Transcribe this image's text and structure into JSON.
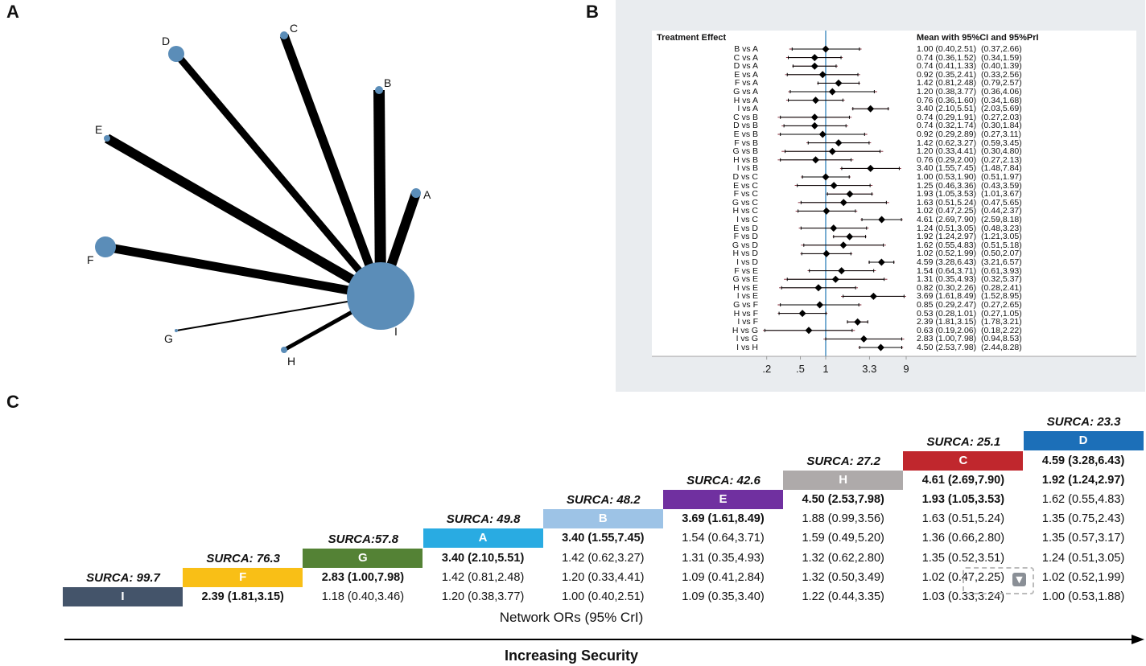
{
  "panels": {
    "a": "A",
    "b": "B",
    "c": "C"
  },
  "chart_data": [
    {
      "type": "network",
      "nodes": [
        {
          "id": "A",
          "label": "A"
        },
        {
          "id": "B",
          "label": "B"
        },
        {
          "id": "C",
          "label": "C"
        },
        {
          "id": "D",
          "label": "D"
        },
        {
          "id": "E",
          "label": "E"
        },
        {
          "id": "F",
          "label": "F"
        },
        {
          "id": "G",
          "label": "G"
        },
        {
          "id": "H",
          "label": "H"
        },
        {
          "id": "I",
          "label": "I"
        }
      ],
      "edges": [
        {
          "from": "A",
          "to": "I"
        },
        {
          "from": "B",
          "to": "I"
        },
        {
          "from": "C",
          "to": "I"
        },
        {
          "from": "D",
          "to": "I"
        },
        {
          "from": "E",
          "to": "I"
        },
        {
          "from": "F",
          "to": "I"
        },
        {
          "from": "G",
          "to": "I"
        },
        {
          "from": "H",
          "to": "I"
        }
      ]
    },
    {
      "type": "forest",
      "header_left": "Treatment Effect",
      "header_right": "Mean with 95%CI and 95%PrI",
      "x_scale": "log",
      "x_ticks": [
        {
          "value": 0.2,
          "label": ".2"
        },
        {
          "value": 0.5,
          "label": ".5"
        },
        {
          "value": 1,
          "label": "1"
        },
        {
          "value": 3.3,
          "label": "3.3"
        },
        {
          "value": 9,
          "label": "9"
        }
      ],
      "reference_line": 1,
      "rows": [
        {
          "label": "B vs A",
          "mean": 1.0,
          "ci": [
            0.4,
            2.51
          ],
          "pri": [
            0.37,
            2.66
          ],
          "text": "1.00 (0.40,2.51)  (0.37,2.66)"
        },
        {
          "label": "C vs A",
          "mean": 0.74,
          "ci": [
            0.36,
            1.52
          ],
          "pri": [
            0.34,
            1.59
          ],
          "text": "0.74 (0.36,1.52)  (0.34,1.59)"
        },
        {
          "label": "D vs A",
          "mean": 0.74,
          "ci": [
            0.41,
            1.33
          ],
          "pri": [
            0.4,
            1.39
          ],
          "text": "0.74 (0.41,1.33)  (0.40,1.39)"
        },
        {
          "label": "E vs A",
          "mean": 0.92,
          "ci": [
            0.35,
            2.41
          ],
          "pri": [
            0.33,
            2.56
          ],
          "text": "0.92 (0.35,2.41)  (0.33,2.56)"
        },
        {
          "label": "F vs A",
          "mean": 1.42,
          "ci": [
            0.81,
            2.48
          ],
          "pri": [
            0.79,
            2.57
          ],
          "text": "1.42 (0.81,2.48)  (0.79,2.57)"
        },
        {
          "label": "G vs A",
          "mean": 1.2,
          "ci": [
            0.38,
            3.77
          ],
          "pri": [
            0.36,
            4.06
          ],
          "text": "1.20 (0.38,3.77)  (0.36,4.06)"
        },
        {
          "label": "H vs A",
          "mean": 0.76,
          "ci": [
            0.36,
            1.6
          ],
          "pri": [
            0.34,
            1.68
          ],
          "text": "0.76 (0.36,1.60)  (0.34,1.68)"
        },
        {
          "label": "I vs A",
          "mean": 3.4,
          "ci": [
            2.1,
            5.51
          ],
          "pri": [
            2.03,
            5.69
          ],
          "text": "3.40 (2.10,5.51)  (2.03,5.69)"
        },
        {
          "label": "C vs B",
          "mean": 0.74,
          "ci": [
            0.29,
            1.91
          ],
          "pri": [
            0.27,
            2.03
          ],
          "text": "0.74 (0.29,1.91)  (0.27,2.03)"
        },
        {
          "label": "D vs B",
          "mean": 0.74,
          "ci": [
            0.32,
            1.74
          ],
          "pri": [
            0.3,
            1.84
          ],
          "text": "0.74 (0.32,1.74)  (0.30,1.84)"
        },
        {
          "label": "E vs B",
          "mean": 0.92,
          "ci": [
            0.29,
            2.89
          ],
          "pri": [
            0.27,
            3.11
          ],
          "text": "0.92 (0.29,2.89)  (0.27,3.11)"
        },
        {
          "label": "F vs B",
          "mean": 1.42,
          "ci": [
            0.62,
            3.27
          ],
          "pri": [
            0.59,
            3.45
          ],
          "text": "1.42 (0.62,3.27)  (0.59,3.45)"
        },
        {
          "label": "G vs B",
          "mean": 1.2,
          "ci": [
            0.33,
            4.41
          ],
          "pri": [
            0.3,
            4.8
          ],
          "text": "1.20 (0.33,4.41)  (0.30,4.80)"
        },
        {
          "label": "H vs B",
          "mean": 0.76,
          "ci": [
            0.29,
            2.0
          ],
          "pri": [
            0.27,
            2.13
          ],
          "text": "0.76 (0.29,2.00)  (0.27,2.13)"
        },
        {
          "label": "I vs B",
          "mean": 3.4,
          "ci": [
            1.55,
            7.45
          ],
          "pri": [
            1.48,
            7.84
          ],
          "text": "3.40 (1.55,7.45)  (1.48,7.84)"
        },
        {
          "label": "D vs C",
          "mean": 1.0,
          "ci": [
            0.53,
            1.9
          ],
          "pri": [
            0.51,
            1.97
          ],
          "text": "1.00 (0.53,1.90)  (0.51,1.97)"
        },
        {
          "label": "E vs C",
          "mean": 1.25,
          "ci": [
            0.46,
            3.36
          ],
          "pri": [
            0.43,
            3.59
          ],
          "text": "1.25 (0.46,3.36)  (0.43,3.59)"
        },
        {
          "label": "F vs C",
          "mean": 1.93,
          "ci": [
            1.05,
            3.53
          ],
          "pri": [
            1.01,
            3.67
          ],
          "text": "1.93 (1.05,3.53)  (1.01,3.67)"
        },
        {
          "label": "G vs C",
          "mean": 1.63,
          "ci": [
            0.51,
            5.24
          ],
          "pri": [
            0.47,
            5.65
          ],
          "text": "1.63 (0.51,5.24)  (0.47,5.65)"
        },
        {
          "label": "H vs C",
          "mean": 1.02,
          "ci": [
            0.47,
            2.25
          ],
          "pri": [
            0.44,
            2.37
          ],
          "text": "1.02 (0.47,2.25)  (0.44,2.37)"
        },
        {
          "label": "I vs C",
          "mean": 4.61,
          "ci": [
            2.69,
            7.9
          ],
          "pri": [
            2.59,
            8.18
          ],
          "text": "4.61 (2.69,7.90)  (2.59,8.18)"
        },
        {
          "label": "E vs D",
          "mean": 1.24,
          "ci": [
            0.51,
            3.05
          ],
          "pri": [
            0.48,
            3.23
          ],
          "text": "1.24 (0.51,3.05)  (0.48,3.23)"
        },
        {
          "label": "F vs D",
          "mean": 1.92,
          "ci": [
            1.24,
            2.97
          ],
          "pri": [
            1.21,
            3.05
          ],
          "text": "1.92 (1.24,2.97)  (1.21,3.05)"
        },
        {
          "label": "G vs D",
          "mean": 1.62,
          "ci": [
            0.55,
            4.83
          ],
          "pri": [
            0.51,
            5.18
          ],
          "text": "1.62 (0.55,4.83)  (0.51,5.18)"
        },
        {
          "label": "H vs D",
          "mean": 1.02,
          "ci": [
            0.52,
            1.99
          ],
          "pri": [
            0.5,
            2.07
          ],
          "text": "1.02 (0.52,1.99)  (0.50,2.07)"
        },
        {
          "label": "I vs D",
          "mean": 4.59,
          "ci": [
            3.28,
            6.43
          ],
          "pri": [
            3.21,
            6.57
          ],
          "text": "4.59 (3.28,6.43)  (3.21,6.57)"
        },
        {
          "label": "F vs E",
          "mean": 1.54,
          "ci": [
            0.64,
            3.71
          ],
          "pri": [
            0.61,
            3.93
          ],
          "text": "1.54 (0.64,3.71)  (0.61,3.93)"
        },
        {
          "label": "G vs E",
          "mean": 1.31,
          "ci": [
            0.35,
            4.93
          ],
          "pri": [
            0.32,
            5.37
          ],
          "text": "1.31 (0.35,4.93)  (0.32,5.37)"
        },
        {
          "label": "H vs E",
          "mean": 0.82,
          "ci": [
            0.3,
            2.26
          ],
          "pri": [
            0.28,
            2.41
          ],
          "text": "0.82 (0.30,2.26)  (0.28,2.41)"
        },
        {
          "label": "I vs E",
          "mean": 3.69,
          "ci": [
            1.61,
            8.49
          ],
          "pri": [
            1.52,
            8.95
          ],
          "text": "3.69 (1.61,8.49)  (1.52,8.95)"
        },
        {
          "label": "G vs F",
          "mean": 0.85,
          "ci": [
            0.29,
            2.47
          ],
          "pri": [
            0.27,
            2.65
          ],
          "text": "0.85 (0.29,2.47)  (0.27,2.65)"
        },
        {
          "label": "H vs F",
          "mean": 0.53,
          "ci": [
            0.28,
            1.01
          ],
          "pri": [
            0.27,
            1.05
          ],
          "text": "0.53 (0.28,1.01)  (0.27,1.05)"
        },
        {
          "label": "I vs F",
          "mean": 2.39,
          "ci": [
            1.81,
            3.15
          ],
          "pri": [
            1.78,
            3.21
          ],
          "text": "2.39 (1.81,3.15)  (1.78,3.21)"
        },
        {
          "label": "H vs G",
          "mean": 0.63,
          "ci": [
            0.19,
            2.06
          ],
          "pri": [
            0.18,
            2.22
          ],
          "text": "0.63 (0.19,2.06)  (0.18,2.22)"
        },
        {
          "label": "I vs G",
          "mean": 2.83,
          "ci": [
            1.0,
            7.98
          ],
          "pri": [
            0.94,
            8.53
          ],
          "text": "2.83 (1.00,7.98)  (0.94,8.53)"
        },
        {
          "label": "I vs H",
          "mean": 4.5,
          "ci": [
            2.53,
            7.98
          ],
          "pri": [
            2.44,
            8.28
          ],
          "text": "4.50 (2.53,7.98)  (2.44,8.28)"
        }
      ]
    },
    {
      "type": "table",
      "title": "Network ORs (95% CrI)",
      "arrow_label": "Increasing Security",
      "treatments": [
        {
          "name": "I",
          "surca": "SURCA: 99.7",
          "color": "#44546a"
        },
        {
          "name": "F",
          "surca": "SURCA: 76.3",
          "color": "#f9bf16"
        },
        {
          "name": "G",
          "surca": "SURCA:57.8",
          "color": "#548235"
        },
        {
          "name": "A",
          "surca": "SURCA: 49.8",
          "color": "#29abe2"
        },
        {
          "name": "B",
          "surca": "SURCA: 48.2",
          "color": "#9dc3e6"
        },
        {
          "name": "E",
          "surca": "SURCA: 42.6",
          "color": "#7030a0"
        },
        {
          "name": "H",
          "surca": "SURCA: 27.2",
          "color": "#aeaaaa"
        },
        {
          "name": "C",
          "surca": "SURCA: 25.1",
          "color": "#c0272d"
        },
        {
          "name": "D",
          "surca": "SURCA: 23.3",
          "color": "#1c6fb8"
        }
      ],
      "columns": [
        {
          "treatment": "F",
          "cells": [
            {
              "text": "2.39 (1.81,3.15)",
              "bold": true
            }
          ]
        },
        {
          "treatment": "G",
          "cells": [
            {
              "text": "1.18 (0.40,3.46)",
              "bold": false
            },
            {
              "text": "2.83 (1.00,7.98)",
              "bold": true
            }
          ]
        },
        {
          "treatment": "A",
          "cells": [
            {
              "text": "1.20 (0.38,3.77)",
              "bold": false
            },
            {
              "text": "1.42 (0.81,2.48)",
              "bold": false
            },
            {
              "text": "3.40 (2.10,5.51)",
              "bold": true
            }
          ]
        },
        {
          "treatment": "B",
          "cells": [
            {
              "text": "1.00 (0.40,2.51)",
              "bold": false
            },
            {
              "text": "1.20 (0.33,4.41)",
              "bold": false
            },
            {
              "text": "1.42 (0.62,3.27)",
              "bold": false
            },
            {
              "text": "3.40 (1.55,7.45)",
              "bold": true
            }
          ]
        },
        {
          "treatment": "E",
          "cells": [
            {
              "text": "1.09 (0.35,3.40)",
              "bold": false
            },
            {
              "text": "1.09 (0.41,2.84)",
              "bold": false
            },
            {
              "text": "1.31 (0.35,4.93)",
              "bold": false
            },
            {
              "text": "1.54 (0.64,3.71)",
              "bold": false
            },
            {
              "text": "3.69 (1.61,8.49)",
              "bold": true
            }
          ]
        },
        {
          "treatment": "H",
          "cells": [
            {
              "text": "1.22 (0.44,3.35)",
              "bold": false
            },
            {
              "text": "1.32 (0.50,3.49)",
              "bold": false
            },
            {
              "text": "1.32 (0.62,2.80)",
              "bold": false
            },
            {
              "text": "1.59 (0.49,5.20)",
              "bold": false
            },
            {
              "text": "1.88 (0.99,3.56)",
              "bold": false
            },
            {
              "text": "4.50 (2.53,7.98)",
              "bold": true
            }
          ]
        },
        {
          "treatment": "C",
          "cells": [
            {
              "text": "1.03 (0.33,3.24)",
              "bold": false
            },
            {
              "text": "1.02 (0.47,2.25)",
              "bold": false
            },
            {
              "text": "1.35 (0.52,3.51)",
              "bold": false
            },
            {
              "text": "1.36 (0.66,2.80)",
              "bold": false
            },
            {
              "text": "1.63 (0.51,5.24)",
              "bold": false
            },
            {
              "text": "1.93 (1.05,3.53)",
              "bold": true
            },
            {
              "text": "4.61 (2.69,7.90)",
              "bold": true
            }
          ]
        },
        {
          "treatment": "D",
          "cells": [
            {
              "text": "1.00 (0.53,1.88)",
              "bold": false
            },
            {
              "text": "1.02 (0.52,1.99)",
              "bold": false
            },
            {
              "text": "1.24 (0.51,3.05)",
              "bold": false
            },
            {
              "text": "1.35 (0.57,3.17)",
              "bold": false
            },
            {
              "text": "1.35 (0.75,2.43)",
              "bold": false
            },
            {
              "text": "1.62 (0.55,4.83)",
              "bold": false
            },
            {
              "text": "1.92 (1.24,2.97)",
              "bold": true
            },
            {
              "text": "4.59 (3.28,6.43)",
              "bold": true
            }
          ]
        }
      ]
    }
  ],
  "colors": {
    "node": "#5b8db8",
    "edge": "#000000",
    "ref_line": "#1f77b4",
    "ci_line": "#7b1f2e",
    "panel_bg": "#e9ecef"
  },
  "icons": {
    "dropdown": "chevron-down-icon"
  }
}
